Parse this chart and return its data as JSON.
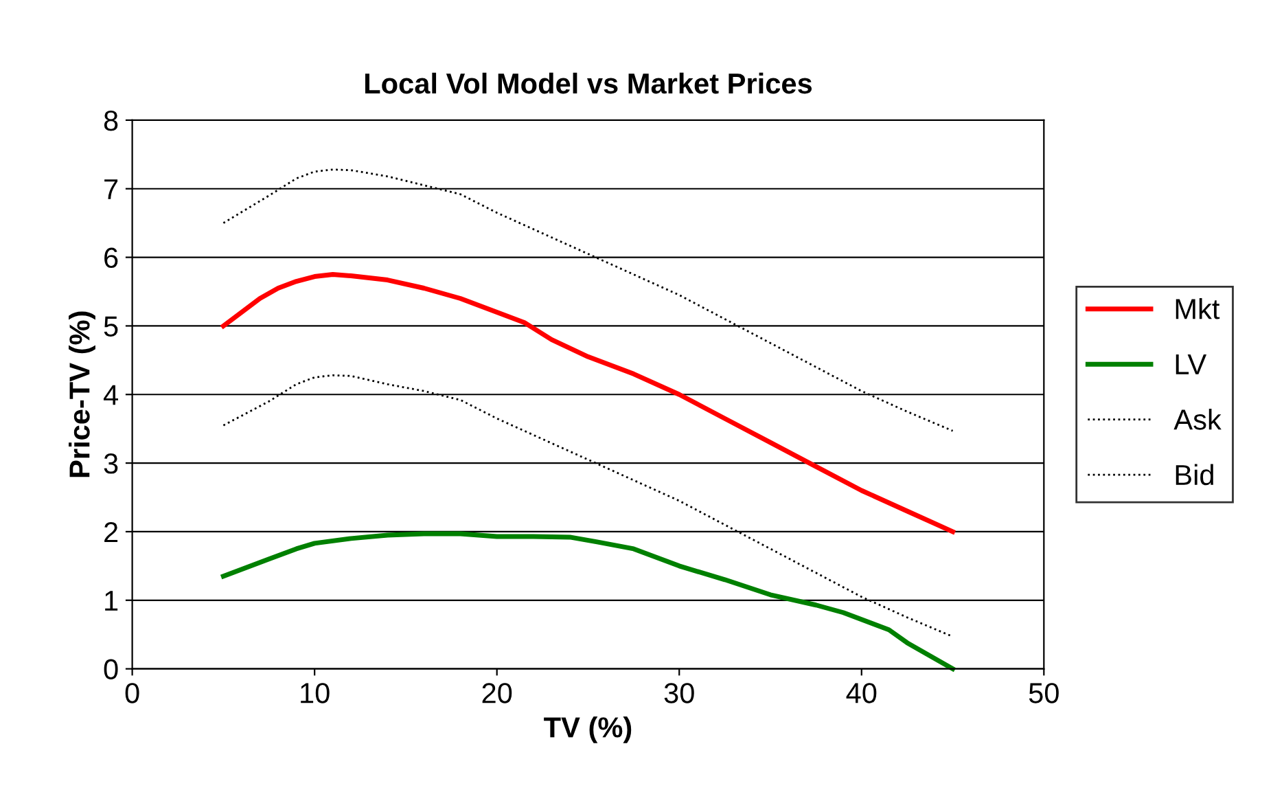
{
  "chart_data": {
    "type": "line",
    "title": "Local Vol Model vs Market Prices",
    "xlabel": "TV (%)",
    "ylabel": "Price-TV (%)",
    "xlim": [
      0,
      50
    ],
    "xticks": [
      0,
      10,
      20,
      30,
      40,
      50
    ],
    "ylim": [
      0,
      8
    ],
    "yticks": [
      0,
      1,
      2,
      3,
      4,
      5,
      6,
      7,
      8
    ],
    "grid": "y",
    "legend": "right",
    "marker": "none",
    "series": [
      {
        "name": "Mkt",
        "color": "#ff0000",
        "line_style": "solid",
        "x": [
          5,
          6,
          7,
          8,
          9,
          10,
          11,
          12,
          14,
          16,
          18,
          20,
          21.5,
          23,
          25,
          27.5,
          30,
          32.5,
          35,
          37.5,
          40,
          42.5,
          45
        ],
        "values": [
          5.0,
          5.2,
          5.4,
          5.55,
          5.65,
          5.72,
          5.75,
          5.73,
          5.67,
          5.55,
          5.4,
          5.2,
          5.05,
          4.8,
          4.55,
          4.3,
          4.0,
          3.65,
          3.3,
          2.95,
          2.6,
          2.3,
          2.0
        ]
      },
      {
        "name": "LV",
        "color": "#008000",
        "line_style": "solid",
        "x": [
          5,
          7.5,
          9,
          10,
          12,
          14,
          16,
          18,
          20,
          22,
          24,
          25.5,
          27.5,
          30,
          32.5,
          35,
          37.5,
          39,
          41.5,
          42.5,
          45
        ],
        "values": [
          1.35,
          1.6,
          1.75,
          1.83,
          1.9,
          1.95,
          1.97,
          1.97,
          1.93,
          1.93,
          1.92,
          1.85,
          1.75,
          1.5,
          1.3,
          1.08,
          0.93,
          0.82,
          0.57,
          0.38,
          0.0
        ]
      },
      {
        "name": "Ask",
        "color": "#000000",
        "line_style": "dotted",
        "x": [
          5,
          7.5,
          9,
          10,
          11,
          12,
          14,
          16,
          18,
          20,
          22.5,
          25,
          27.5,
          30,
          32.5,
          35,
          37.5,
          40,
          42.5,
          45
        ],
        "values": [
          6.5,
          6.9,
          7.15,
          7.25,
          7.28,
          7.27,
          7.18,
          7.05,
          6.92,
          6.65,
          6.35,
          6.05,
          5.75,
          5.45,
          5.1,
          4.75,
          4.4,
          4.05,
          3.75,
          3.47
        ]
      },
      {
        "name": "Bid",
        "color": "#000000",
        "line_style": "dotted",
        "x": [
          5,
          7.5,
          9,
          10,
          11,
          12,
          14,
          16,
          18,
          20,
          22.5,
          25,
          27.5,
          30,
          32.5,
          35,
          37.5,
          40,
          42.5,
          45
        ],
        "values": [
          3.55,
          3.9,
          4.15,
          4.25,
          4.28,
          4.27,
          4.15,
          4.05,
          3.92,
          3.65,
          3.35,
          3.05,
          2.75,
          2.45,
          2.1,
          1.75,
          1.4,
          1.05,
          0.75,
          0.47
        ]
      }
    ]
  }
}
